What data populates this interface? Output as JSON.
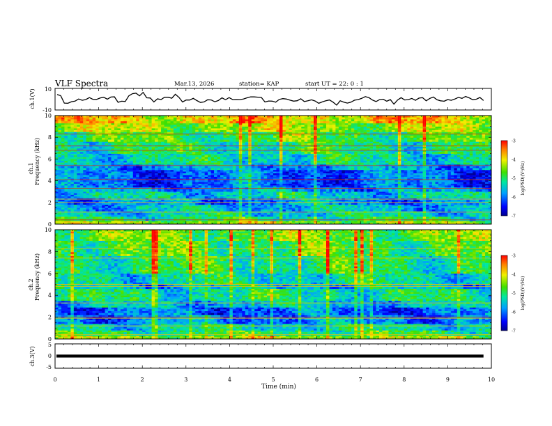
{
  "header": {
    "title": "VLF Spectra",
    "date": "Mar.13, 2026",
    "station": "station= KAP",
    "start": "start  UT =   22: 0  : 1"
  },
  "chart_data": [
    {
      "id": "ch1_waveform",
      "type": "line",
      "ylabel": "ch.1(V)",
      "ylim": [
        -10,
        10
      ],
      "yticks": [
        "10",
        "-10"
      ],
      "xlim": [
        0,
        10
      ],
      "values": [
        4.4,
        3.2,
        -3.6,
        -3.8,
        -2.3,
        -1.8,
        0.2,
        -1.0,
        -0.3,
        1.5,
        -0.1,
        -0.2,
        1.1,
        1.8,
        0.0,
        2.0,
        2.2,
        -2.9,
        -1.9,
        -2.1,
        3.1,
        5.1,
        5.6,
        3.1,
        6.3,
        1.3,
        1.1,
        -2.6,
        0.3,
        -0.3,
        1.9,
        1.8,
        0.9,
        4.6,
        1.7,
        -2.6,
        -0.8,
        -0.8,
        0.8,
        -1.3,
        -3.0,
        -2.5,
        -0.5,
        -0.7,
        -2.4,
        -1.2,
        1.3,
        -0.5,
        1.5,
        -0.4,
        -0.3,
        -0.4,
        0.1,
        1.3,
        2.2,
        2.1,
        1.9,
        1.6,
        -2.6,
        -1.7,
        -1.8,
        -2.8,
        -0.2,
        0.5,
        0.1,
        -0.9,
        -1.8,
        -1.4,
        0.4,
        -2.2,
        -1.5,
        -0.6,
        -1.7,
        -3.8,
        -2.5,
        -1.5,
        -0.7,
        -2.7,
        -5.5,
        -1.5,
        -2.7,
        -3.6,
        -2.8,
        -0.9,
        -0.4,
        0.8,
        2.4,
        1.5,
        -0.8,
        -2.2,
        -0.4,
        0.0,
        -1.9,
        -0.4,
        -4.6,
        -0.8,
        1.4,
        -0.7,
        -0.4,
        0.7,
        -1.0,
        1.0,
        1.4,
        -1.5,
        0.7,
        2.0,
        -0.5,
        -1.5,
        -1.9,
        -0.4,
        -1.0,
        0.1,
        1.7,
        0.8,
        2.5,
        1.2,
        -0.5,
        0.0,
        1.6,
        -1.2
      ],
      "x_end_min": 9.82
    },
    {
      "id": "ch1_spectrogram",
      "type": "heatmap",
      "title": "ch.1",
      "ylabel": "Frequency (kHz)",
      "ylim": [
        0,
        10
      ],
      "yticks": [
        "0",
        "2",
        "4",
        "6",
        "8",
        "10"
      ],
      "colorbar_label": "log(PSD)(V²/Hz)",
      "colorbar_range": [
        -7,
        -3
      ],
      "colorbar_ticks": [
        "-3",
        "-4",
        "-5",
        "-6",
        "-7"
      ],
      "bands": [
        {
          "from": 0.0,
          "to": 0.3,
          "level": -4.4
        },
        {
          "from": 0.3,
          "to": 0.7,
          "level": -5.1
        },
        {
          "from": 0.7,
          "to": 1.2,
          "level": -5.4
        },
        {
          "from": 1.2,
          "to": 1.8,
          "level": -5.6
        },
        {
          "from": 1.8,
          "to": 2.4,
          "level": -5.9
        },
        {
          "from": 2.4,
          "to": 3.0,
          "level": -5.5
        },
        {
          "from": 3.0,
          "to": 3.4,
          "level": -5.8
        },
        {
          "from": 3.4,
          "to": 5.0,
          "level": -6.1
        },
        {
          "from": 5.0,
          "to": 5.5,
          "level": -5.8
        },
        {
          "from": 5.5,
          "to": 6.5,
          "level": -5.3
        },
        {
          "from": 6.5,
          "to": 7.6,
          "level": -5.1
        },
        {
          "from": 7.6,
          "to": 8.5,
          "level": -4.8
        },
        {
          "from": 8.5,
          "to": 9.3,
          "level": -4.4
        },
        {
          "from": 9.3,
          "to": 10.0,
          "level": -3.9
        }
      ],
      "lines_khz": [
        0.4,
        1.1,
        2.0,
        2.3,
        3.3,
        4.1,
        5.4,
        6.8,
        7.2,
        8.3
      ]
    },
    {
      "id": "ch2_spectrogram",
      "type": "heatmap",
      "title": "ch.2",
      "ylabel": "Frequency (kHz)",
      "ylim": [
        0,
        10
      ],
      "yticks": [
        "0",
        "2",
        "4",
        "6",
        "8",
        "10"
      ],
      "colorbar_label": "log(PSD)(V²/Hz)",
      "colorbar_range": [
        -7,
        -3
      ],
      "colorbar_ticks": [
        "-3",
        "-4",
        "-5",
        "-6",
        "-7"
      ],
      "bands": [
        {
          "from": 0.0,
          "to": 0.3,
          "level": -4.4
        },
        {
          "from": 0.3,
          "to": 0.8,
          "level": -5.0
        },
        {
          "from": 0.8,
          "to": 1.4,
          "level": -5.3
        },
        {
          "from": 1.4,
          "to": 2.2,
          "level": -5.9
        },
        {
          "from": 2.2,
          "to": 2.9,
          "level": -6.1
        },
        {
          "from": 2.9,
          "to": 3.5,
          "level": -5.6
        },
        {
          "from": 3.5,
          "to": 4.6,
          "level": -5.2
        },
        {
          "from": 4.6,
          "to": 5.0,
          "level": -5.6
        },
        {
          "from": 5.0,
          "to": 6.0,
          "level": -5.3
        },
        {
          "from": 6.0,
          "to": 7.6,
          "level": -5.0
        },
        {
          "from": 7.6,
          "to": 9.0,
          "level": -4.8
        },
        {
          "from": 9.0,
          "to": 10.0,
          "level": -4.6
        }
      ],
      "lines_khz": [
        0.4,
        1.2,
        1.9,
        2.0,
        3.3,
        4.8,
        5.0,
        7.4,
        8.3
      ]
    },
    {
      "id": "ch3_waveform",
      "type": "line",
      "ylabel": "ch.3(V)",
      "ylim": [
        -5,
        5
      ],
      "yticks": [
        "5",
        "0",
        "-5"
      ],
      "xlim": [
        0,
        10
      ],
      "value_band": [
        -0.6,
        0.6
      ],
      "x_end_min": 9.82
    }
  ],
  "xaxis": {
    "label": "Time  (min)",
    "ticks": [
      "0",
      "1",
      "2",
      "3",
      "4",
      "5",
      "6",
      "7",
      "8",
      "9",
      "10"
    ]
  }
}
